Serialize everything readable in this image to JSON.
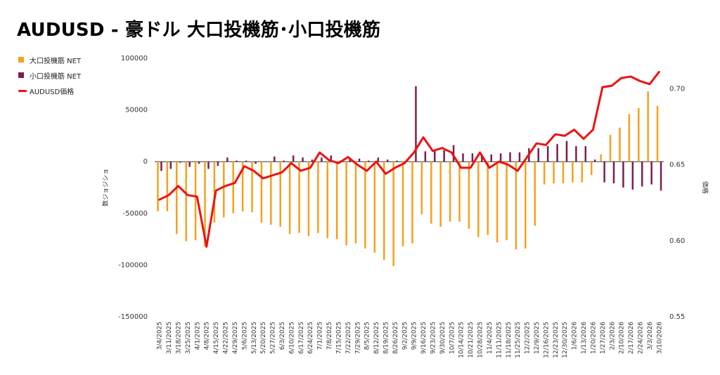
{
  "title": "AUDUSD - 豪ドル 大口投機筋･小口投機筋",
  "colors": {
    "large": "#f5a11c",
    "small": "#7a1f4f",
    "price": "#ee1111"
  },
  "chart_data": {
    "type": "bar",
    "title": "AUDUSD - 豪ドル 大口投機筋･小口投機筋",
    "ylabel": "数ジョジショ",
    "y2label": "価格",
    "ylim": [
      -150000,
      100000
    ],
    "y2lim": [
      0.55,
      0.72
    ],
    "yticks": [
      "100000",
      "50000",
      "0",
      "-50000",
      "-100000",
      "-150000"
    ],
    "y2ticks": [
      "0.70",
      "0.65",
      "0.60",
      "0.55"
    ],
    "grid": false,
    "legend_position": "top-left",
    "categories": [
      "3/4/2025",
      "3/11/2025",
      "3/18/2025",
      "3/25/2025",
      "4/1/2025",
      "4/8/2025",
      "4/15/2025",
      "4/22/2025",
      "4/29/2025",
      "5/6/2025",
      "5/13/2025",
      "5/20/2025",
      "5/27/2025",
      "6/3/2025",
      "6/10/2025",
      "6/17/2025",
      "6/24/2025",
      "7/1/2025",
      "7/8/2025",
      "7/15/2025",
      "7/22/2025",
      "7/29/2025",
      "8/5/2025",
      "8/12/2025",
      "8/19/2025",
      "8/26/2025",
      "9/2/2025",
      "9/9/2025",
      "9/16/2025",
      "9/23/2025",
      "9/30/2025",
      "10/7/2025",
      "10/14/2025",
      "10/21/2025",
      "10/28/2025",
      "11/4/2025",
      "11/11/2025",
      "11/18/2025",
      "11/25/2025",
      "12/2/2025",
      "12/9/2025",
      "12/16/2025",
      "12/23/2025",
      "12/30/2025",
      "1/6/2026",
      "1/13/2026",
      "1/20/2026",
      "1/27/2026",
      "2/3/2026",
      "2/10/2026",
      "2/17/2026",
      "2/24/2026",
      "3/3/2026",
      "3/10/2026"
    ],
    "series": [
      {
        "name": "大口投機筋 NET",
        "type": "bar",
        "axis": "left",
        "values": [
          -48000,
          -48000,
          -70000,
          -77000,
          -76000,
          -82000,
          -59000,
          -54000,
          -50000,
          -48000,
          -49000,
          -59000,
          -61000,
          -63000,
          -70000,
          -69000,
          -72000,
          -69000,
          -74000,
          -75000,
          -81000,
          -79000,
          -84000,
          -88000,
          -95000,
          -101000,
          -82000,
          -79000,
          -51000,
          -60000,
          -63000,
          -58000,
          -58000,
          -65000,
          -73000,
          -71000,
          -78000,
          -76000,
          -85000,
          -84000,
          -62000,
          -22000,
          -21000,
          -21000,
          -20000,
          -20000,
          -13000,
          7000,
          26000,
          33000,
          46000,
          52000,
          68000,
          54000
        ]
      },
      {
        "name": "小口投機筋 NET",
        "type": "bar",
        "axis": "left",
        "values": [
          -9000,
          -7000,
          -1000,
          -5000,
          -2000,
          -7000,
          -4000,
          4000,
          1000,
          1000,
          -2000,
          0,
          5000,
          1000,
          6000,
          4000,
          2000,
          4000,
          6000,
          1000,
          3000,
          3000,
          1000,
          4000,
          2000,
          1000,
          1000,
          73000,
          10000,
          11000,
          11000,
          16000,
          8000,
          8000,
          7000,
          7000,
          8000,
          9000,
          9000,
          13000,
          13000,
          15000,
          17000,
          20000,
          15000,
          15000,
          2000,
          -20000,
          -21000,
          -25000,
          -27000,
          -24000,
          -22000,
          -28000
        ]
      },
      {
        "name": "AUDUSD価格",
        "type": "line",
        "axis": "right",
        "values": [
          0.627,
          0.63,
          0.636,
          0.63,
          0.629,
          0.596,
          0.633,
          0.636,
          0.638,
          0.649,
          0.646,
          0.641,
          0.643,
          0.645,
          0.651,
          0.646,
          0.648,
          0.658,
          0.653,
          0.651,
          0.655,
          0.65,
          0.646,
          0.652,
          0.644,
          0.648,
          0.651,
          0.658,
          0.668,
          0.659,
          0.661,
          0.658,
          0.648,
          0.648,
          0.658,
          0.648,
          0.652,
          0.65,
          0.646,
          0.655,
          0.664,
          0.663,
          0.67,
          0.669,
          0.673,
          0.667,
          0.673,
          0.701,
          0.702,
          0.707,
          0.708,
          0.705,
          0.703,
          0.711
        ]
      }
    ]
  }
}
